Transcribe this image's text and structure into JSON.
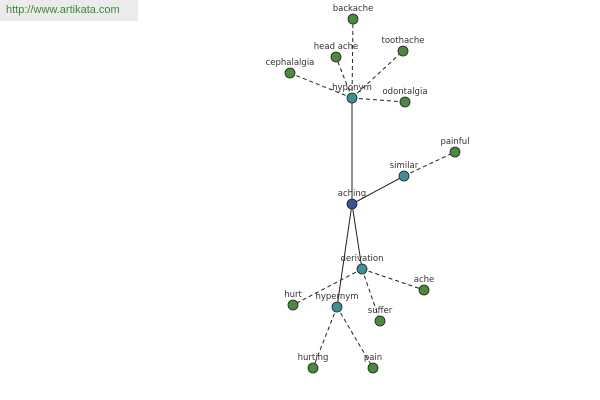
{
  "header": {
    "url": "http://www.artikata.com"
  },
  "nodes": [
    {
      "label": "aching"
    },
    {
      "label": "hyponym"
    },
    {
      "label": "similar"
    },
    {
      "label": "derivation"
    },
    {
      "label": "hypernym"
    },
    {
      "label": "backache"
    },
    {
      "label": "head ache"
    },
    {
      "label": "toothache"
    },
    {
      "label": "cephalalgia"
    },
    {
      "label": "odontalgia"
    },
    {
      "label": "painful"
    },
    {
      "label": "ache"
    },
    {
      "label": "hurt"
    },
    {
      "label": "suffer"
    },
    {
      "label": "hurting"
    },
    {
      "label": "pain"
    }
  ]
}
